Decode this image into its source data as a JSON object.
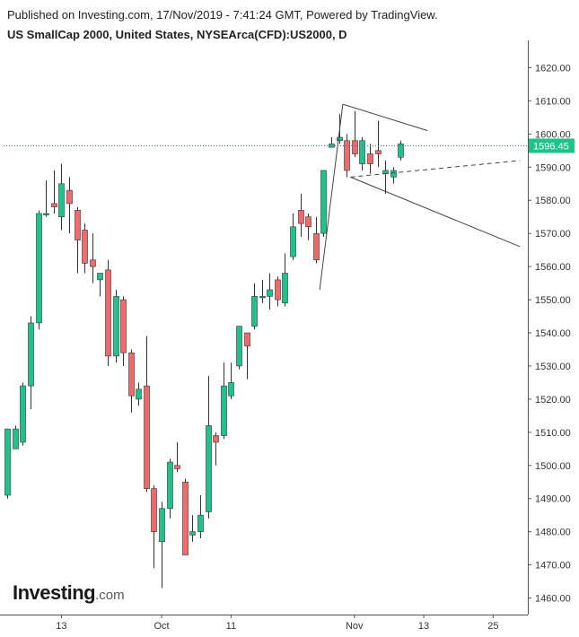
{
  "header": {
    "published": "Published on Investing.com, 17/Nov/2019 - 7:41:24 GMT, Powered by TradingView.",
    "title": "US SmallCap 2000, United States, NYSEArca(CFD):US2000, D"
  },
  "logo": {
    "main": "Investing",
    "suffix": ".com"
  },
  "colors": {
    "up": "#1fc38a",
    "down": "#f0696b",
    "wick": "#333333",
    "last_price_bg": "#1fc38a",
    "price_line": "#2f6fb2"
  },
  "chart_data": {
    "type": "candlestick",
    "symbol": "US2000",
    "interval": "D",
    "ylim": [
      1455,
      1625
    ],
    "y_ticks": [
      1460,
      1470,
      1480,
      1490,
      1500,
      1510,
      1520,
      1530,
      1540,
      1550,
      1560,
      1570,
      1580,
      1590,
      1600,
      1610,
      1620
    ],
    "y_tick_labels": [
      "1460.00",
      "1470.00",
      "1480.00",
      "1490.00",
      "1500.00",
      "1510.00",
      "1520.00",
      "1530.00",
      "1540.00",
      "1550.00",
      "1560.00",
      "1570.00",
      "1580.00",
      "1590.00",
      "1600.00",
      "1610.00",
      "1620.00"
    ],
    "x_range": [
      0,
      67
    ],
    "x_ticks": [
      {
        "x": 7,
        "label": "13"
      },
      {
        "x": 20,
        "label": "Oct"
      },
      {
        "x": 29,
        "label": "11"
      },
      {
        "x": 45,
        "label": "Nov"
      },
      {
        "x": 54,
        "label": "13"
      },
      {
        "x": 63,
        "label": "25"
      }
    ],
    "last_price": 1596.45,
    "last_price_label": "1596.45",
    "candles": [
      {
        "x": 0,
        "o": 1491,
        "h": 1511,
        "l": 1490,
        "c": 1511
      },
      {
        "x": 1,
        "o": 1505,
        "h": 1512,
        "l": 1505,
        "c": 1511
      },
      {
        "x": 2,
        "o": 1507,
        "h": 1525,
        "l": 1506,
        "c": 1524
      },
      {
        "x": 3,
        "o": 1524,
        "h": 1545,
        "l": 1517,
        "c": 1543
      },
      {
        "x": 4,
        "o": 1543,
        "h": 1577,
        "l": 1541,
        "c": 1576
      },
      {
        "x": 5,
        "o": 1576,
        "h": 1586,
        "l": 1575,
        "c": 1576
      },
      {
        "x": 6,
        "o": 1579,
        "h": 1589,
        "l": 1576,
        "c": 1578
      },
      {
        "x": 7,
        "o": 1575,
        "h": 1591,
        "l": 1571,
        "c": 1585
      },
      {
        "x": 8,
        "o": 1583,
        "h": 1587,
        "l": 1570,
        "c": 1579
      },
      {
        "x": 9,
        "o": 1577,
        "h": 1578,
        "l": 1558,
        "c": 1568
      },
      {
        "x": 10,
        "o": 1571,
        "h": 1573,
        "l": 1558,
        "c": 1561
      },
      {
        "x": 11,
        "o": 1562,
        "h": 1570,
        "l": 1555,
        "c": 1560
      },
      {
        "x": 12,
        "o": 1556,
        "h": 1558,
        "l": 1551,
        "c": 1558
      },
      {
        "x": 13,
        "o": 1559,
        "h": 1562,
        "l": 1530,
        "c": 1533
      },
      {
        "x": 14,
        "o": 1533,
        "h": 1553,
        "l": 1531,
        "c": 1551
      },
      {
        "x": 15,
        "o": 1550,
        "h": 1551,
        "l": 1530,
        "c": 1534
      },
      {
        "x": 16,
        "o": 1534,
        "h": 1535,
        "l": 1516,
        "c": 1521
      },
      {
        "x": 17,
        "o": 1520,
        "h": 1525,
        "l": 1518,
        "c": 1523
      },
      {
        "x": 18,
        "o": 1524,
        "h": 1539,
        "l": 1492,
        "c": 1493
      },
      {
        "x": 19,
        "o": 1493,
        "h": 1494,
        "l": 1469,
        "c": 1480
      },
      {
        "x": 20,
        "o": 1477,
        "h": 1489,
        "l": 1463,
        "c": 1487
      },
      {
        "x": 21,
        "o": 1487,
        "h": 1502,
        "l": 1484,
        "c": 1501
      },
      {
        "x": 22,
        "o": 1500,
        "h": 1507,
        "l": 1498,
        "c": 1499
      },
      {
        "x": 23,
        "o": 1495,
        "h": 1496,
        "l": 1473,
        "c": 1473
      },
      {
        "x": 24,
        "o": 1479,
        "h": 1485,
        "l": 1477,
        "c": 1480
      },
      {
        "x": 25,
        "o": 1480,
        "h": 1491,
        "l": 1478,
        "c": 1485
      },
      {
        "x": 26,
        "o": 1486,
        "h": 1527,
        "l": 1484,
        "c": 1512
      },
      {
        "x": 27,
        "o": 1509,
        "h": 1510,
        "l": 1500,
        "c": 1507
      },
      {
        "x": 28,
        "o": 1509,
        "h": 1531,
        "l": 1508,
        "c": 1524
      },
      {
        "x": 29,
        "o": 1521,
        "h": 1531,
        "l": 1520,
        "c": 1525
      },
      {
        "x": 30,
        "o": 1530,
        "h": 1542,
        "l": 1529,
        "c": 1542
      },
      {
        "x": 31,
        "o": 1540,
        "h": 1540,
        "l": 1526,
        "c": 1536
      },
      {
        "x": 32,
        "o": 1542,
        "h": 1555,
        "l": 1541,
        "c": 1551
      },
      {
        "x": 33,
        "o": 1551,
        "h": 1556,
        "l": 1549,
        "c": 1551
      },
      {
        "x": 34,
        "o": 1551,
        "h": 1558,
        "l": 1547,
        "c": 1553
      },
      {
        "x": 35,
        "o": 1556,
        "h": 1557,
        "l": 1548,
        "c": 1550
      },
      {
        "x": 36,
        "o": 1549,
        "h": 1564,
        "l": 1548,
        "c": 1558
      },
      {
        "x": 37,
        "o": 1563,
        "h": 1576,
        "l": 1562,
        "c": 1572
      },
      {
        "x": 38,
        "o": 1577,
        "h": 1582,
        "l": 1569,
        "c": 1573
      },
      {
        "x": 39,
        "o": 1575,
        "h": 1576,
        "l": 1568,
        "c": 1572
      },
      {
        "x": 40,
        "o": 1570,
        "h": 1575,
        "l": 1561,
        "c": 1562
      },
      {
        "x": 41,
        "o": 1570,
        "h": 1589,
        "l": 1569,
        "c": 1589
      },
      {
        "x": 42,
        "o": 1596,
        "h": 1599,
        "l": 1596,
        "c": 1597
      },
      {
        "x": 43,
        "o": 1598,
        "h": 1606,
        "l": 1597,
        "c": 1599
      },
      {
        "x": 44,
        "o": 1598,
        "h": 1600,
        "l": 1587,
        "c": 1589
      },
      {
        "x": 45,
        "o": 1598,
        "h": 1607,
        "l": 1593,
        "c": 1594
      },
      {
        "x": 46,
        "o": 1591,
        "h": 1599,
        "l": 1589,
        "c": 1598
      },
      {
        "x": 47,
        "o": 1594,
        "h": 1597,
        "l": 1588,
        "c": 1591
      },
      {
        "x": 48,
        "o": 1595,
        "h": 1604,
        "l": 1590,
        "c": 1594
      },
      {
        "x": 49,
        "o": 1588,
        "h": 1592,
        "l": 1582,
        "c": 1589
      },
      {
        "x": 50,
        "o": 1587,
        "h": 1590,
        "l": 1585,
        "c": 1589
      },
      {
        "x": 51,
        "o": 1593,
        "h": 1598,
        "l": 1592,
        "c": 1597
      }
    ],
    "trendlines": [
      {
        "style": "solid",
        "points": [
          [
            40.5,
            1553
          ],
          [
            43.5,
            1609
          ]
        ]
      },
      {
        "style": "solid",
        "points": [
          [
            43.5,
            1609
          ],
          [
            54.5,
            1601
          ]
        ]
      },
      {
        "style": "solid",
        "points": [
          [
            44.5,
            1587
          ],
          [
            66.5,
            1566
          ]
        ]
      },
      {
        "style": "dashed",
        "points": [
          [
            44.5,
            1587
          ],
          [
            66.5,
            1592
          ]
        ]
      }
    ]
  }
}
